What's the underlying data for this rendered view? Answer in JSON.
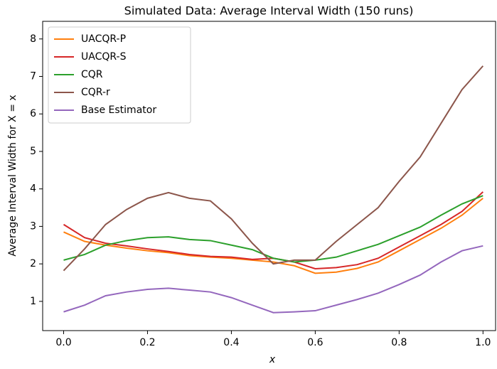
{
  "chart_data": {
    "type": "line",
    "title": "Simulated Data: Average Interval Width (150 runs)",
    "xlabel": "x",
    "ylabel": "Average Interval Width for X = x",
    "x": [
      0,
      0.05,
      0.1,
      0.15,
      0.2,
      0.25,
      0.3,
      0.35,
      0.4,
      0.45,
      0.5,
      0.55,
      0.6,
      0.65,
      0.7,
      0.75,
      0.8,
      0.85,
      0.9,
      0.95,
      1.0
    ],
    "series": [
      {
        "name": "UACQR-P",
        "color": "#ff7f0e",
        "values": [
          2.85,
          2.6,
          2.5,
          2.42,
          2.35,
          2.3,
          2.22,
          2.18,
          2.15,
          2.1,
          2.05,
          1.95,
          1.75,
          1.78,
          1.88,
          2.05,
          2.35,
          2.65,
          2.95,
          3.3,
          3.75
        ]
      },
      {
        "name": "UACQR-S",
        "color": "#d62728",
        "values": [
          3.05,
          2.7,
          2.55,
          2.48,
          2.4,
          2.33,
          2.25,
          2.2,
          2.18,
          2.12,
          2.15,
          2.05,
          1.87,
          1.9,
          1.98,
          2.15,
          2.45,
          2.75,
          3.05,
          3.4,
          3.92
        ]
      },
      {
        "name": "CQR",
        "color": "#2ca02c",
        "values": [
          2.1,
          2.25,
          2.5,
          2.62,
          2.7,
          2.72,
          2.65,
          2.62,
          2.5,
          2.38,
          2.15,
          2.05,
          2.1,
          2.18,
          2.35,
          2.52,
          2.75,
          2.98,
          3.3,
          3.6,
          3.82
        ]
      },
      {
        "name": "CQR-r",
        "color": "#8c564b",
        "values": [
          1.82,
          2.4,
          3.05,
          3.45,
          3.75,
          3.9,
          3.75,
          3.68,
          3.2,
          2.55,
          2.0,
          2.1,
          2.1,
          2.6,
          3.05,
          3.5,
          4.2,
          4.85,
          5.75,
          6.65,
          7.28
        ]
      },
      {
        "name": "Base Estimator",
        "color": "#9467bd",
        "values": [
          0.72,
          0.9,
          1.15,
          1.25,
          1.32,
          1.35,
          1.3,
          1.25,
          1.1,
          0.9,
          0.7,
          0.72,
          0.75,
          0.9,
          1.05,
          1.22,
          1.45,
          1.7,
          2.05,
          2.35,
          2.48
        ]
      }
    ],
    "xlim": [
      -0.05,
      1.03
    ],
    "ylim": [
      0.22,
      8.47
    ],
    "xticks": [
      {
        "value": 0,
        "label": "0.0"
      },
      0.2,
      0.4,
      0.6,
      0.8,
      {
        "value": 1.0,
        "label": "1.0"
      }
    ],
    "yticks": [
      1,
      2,
      3,
      4,
      5,
      6,
      7,
      8
    ],
    "grid": false,
    "legend": "upper left"
  }
}
